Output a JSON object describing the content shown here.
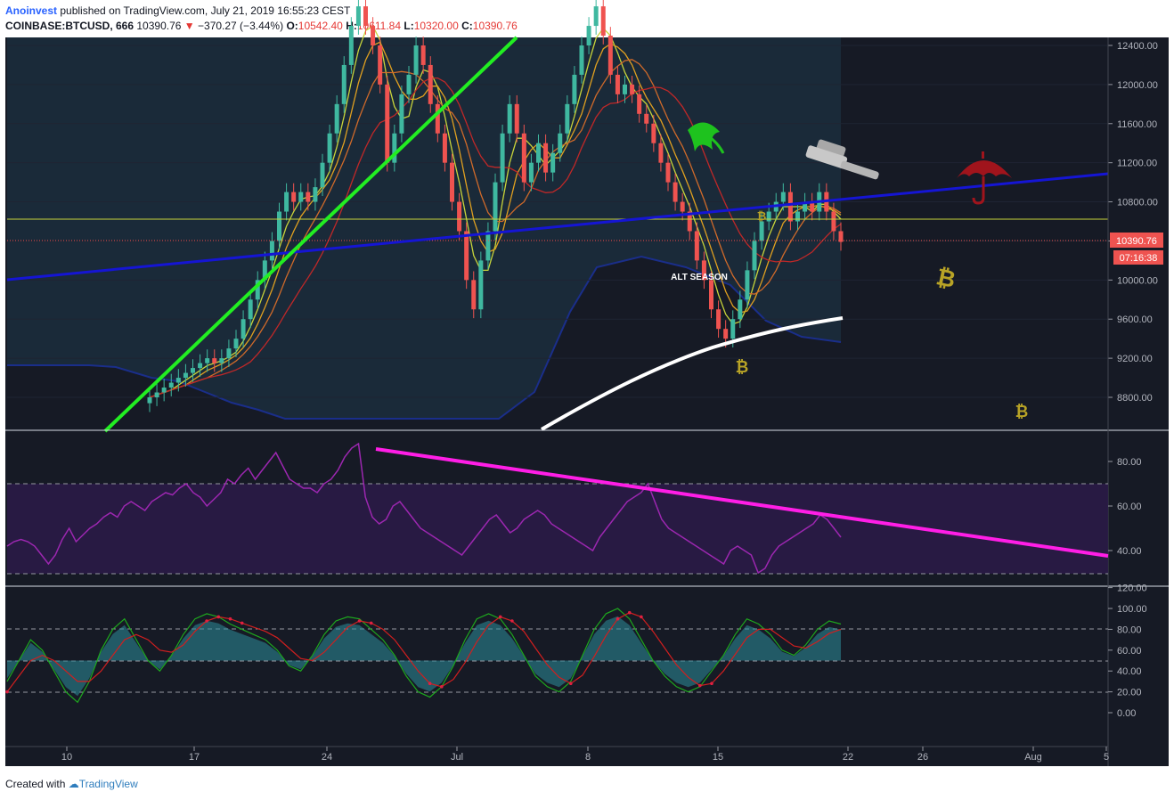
{
  "header": {
    "author": "Anoinvest",
    "published": "published on TradingView.com, July 21, 2019 16:55:23 CEST",
    "symbol": "COINBASE:BTCUSD, 666",
    "last": "10390.76",
    "change": "−370.27 (−3.44%)",
    "o_label": "O:",
    "o": "10542.40",
    "h_label": "H:",
    "h": "10611.84",
    "l_label": "L:",
    "l": "10320.00",
    "c_label": "C:",
    "c": "10390.76"
  },
  "footer": {
    "created": "Created with",
    "brand": "TradingView"
  },
  "colors": {
    "background": "#161a25",
    "up": "#26a69a",
    "down": "#ef5350",
    "trend_green": "#22ee22",
    "trend_blue": "#1515d4",
    "ma_white": "#ffffff",
    "rsi_line": "#9c27b0",
    "rsi_trend": "#ff1ee6",
    "price_tag": "#ef5350"
  },
  "chart_data": [
    {
      "type": "candlestick",
      "panel": "price",
      "y_ticks": [
        "12400.00",
        "12000.00",
        "11600.00",
        "11200.00",
        "10800.00",
        "10400.00",
        "10000.00",
        "9600.00",
        "9200.00",
        "8800.00"
      ],
      "ylim": [
        8500,
        12700
      ],
      "x_ticks": [
        "10",
        "17",
        "24",
        "Jul",
        "8",
        "15",
        "22",
        "26",
        "Aug",
        "5"
      ],
      "last_price_label": "10390.76",
      "countdown_label": "07:16:38",
      "horizontal_level": 10600,
      "annotation": "ALT SEASON",
      "icons": [
        "bitcoin-icon",
        "bitcoin-icon",
        "bitcoin-icon",
        "bitcoin-icon",
        "hammer-icon",
        "umbrella-icon",
        "bull-horn-icon"
      ],
      "close_series": [
        8800,
        8850,
        8900,
        8950,
        9000,
        9050,
        9100,
        9150,
        9200,
        9150,
        9200,
        9300,
        9400,
        9600,
        9800,
        10000,
        10200,
        10400,
        10700,
        10900,
        10800,
        10900,
        10800,
        10950,
        11200,
        11500,
        11800,
        12200,
        12600,
        12800,
        12600,
        12400,
        12000,
        11200,
        11500,
        11900,
        12100,
        12400,
        12200,
        11800,
        11500,
        11200,
        10800,
        10500,
        10000,
        9700,
        10200,
        10500,
        11000,
        11500,
        11800,
        11500,
        11000,
        11200,
        11400,
        11100,
        11300,
        11500,
        11800,
        12100,
        12400,
        12600,
        12800,
        12500,
        12100,
        11900,
        12000,
        11900,
        11700,
        11600,
        11400,
        11200,
        11000,
        10800,
        10700,
        10500,
        10200,
        10000,
        9700,
        9500,
        9400,
        9600,
        9800,
        10100,
        10400,
        10600,
        10700,
        10800,
        10900,
        10600,
        10700,
        10800,
        10700,
        10900,
        10700,
        10500,
        10390
      ]
    },
    {
      "type": "line",
      "panel": "rsi",
      "y_ticks": [
        "80.00",
        "60.00",
        "40.00"
      ],
      "ylim": [
        25,
        95
      ],
      "bands": [
        30,
        70
      ],
      "values": [
        42,
        44,
        45,
        44,
        42,
        38,
        34,
        38,
        45,
        50,
        44,
        47,
        50,
        52,
        55,
        57,
        55,
        60,
        62,
        60,
        58,
        62,
        64,
        66,
        65,
        68,
        70,
        66,
        64,
        60,
        63,
        66,
        72,
        70,
        74,
        77,
        72,
        76,
        80,
        84,
        78,
        72,
        70,
        68,
        68,
        66,
        70,
        72,
        76,
        82,
        86,
        88,
        64,
        55,
        52,
        54,
        60,
        62,
        58,
        54,
        50,
        48,
        46,
        44,
        42,
        40,
        38,
        42,
        46,
        50,
        54,
        56,
        52,
        48,
        50,
        54,
        56,
        58,
        56,
        52,
        50,
        48,
        46,
        44,
        42,
        40,
        46,
        50,
        54,
        58,
        62,
        64,
        66,
        70,
        62,
        54,
        50,
        48,
        46,
        44,
        42,
        40,
        38,
        36,
        34,
        40,
        42,
        40,
        38,
        30,
        32,
        38,
        42,
        44,
        46,
        48,
        50,
        52,
        56,
        54,
        50,
        46
      ]
    },
    {
      "type": "line",
      "panel": "stochastic",
      "y_ticks": [
        "120.00",
        "100.00",
        "80.00",
        "60.00",
        "40.00",
        "20.00",
        "0.00"
      ],
      "ylim": [
        -15,
        125
      ],
      "bands": [
        20,
        50,
        80
      ],
      "series": [
        {
          "name": "",
          "values": [
            30,
            50,
            70,
            60,
            40,
            20,
            10,
            30,
            60,
            80,
            90,
            70,
            50,
            40,
            55,
            75,
            90,
            95,
            92,
            85,
            80,
            75,
            70,
            60,
            45,
            40,
            55,
            75,
            88,
            92,
            90,
            80,
            70,
            55,
            35,
            20,
            15,
            25,
            45,
            70,
            90,
            95,
            90,
            75,
            55,
            35,
            25,
            20,
            30,
            55,
            80,
            95,
            100,
            90,
            70,
            50,
            35,
            25,
            20,
            25,
            40,
            55,
            75,
            90,
            85,
            75,
            60,
            55,
            65,
            80,
            88,
            85
          ]
        },
        {
          "name": "",
          "values": [
            20,
            35,
            50,
            55,
            50,
            40,
            30,
            30,
            40,
            55,
            70,
            75,
            70,
            60,
            58,
            65,
            78,
            88,
            92,
            90,
            86,
            82,
            78,
            72,
            62,
            52,
            50,
            58,
            70,
            82,
            88,
            86,
            80,
            70,
            55,
            40,
            28,
            25,
            32,
            48,
            68,
            84,
            92,
            88,
            78,
            62,
            46,
            34,
            28,
            36,
            54,
            74,
            90,
            96,
            92,
            78,
            62,
            46,
            34,
            26,
            28,
            40,
            56,
            72,
            80,
            80,
            72,
            64,
            62,
            68,
            76,
            80
          ]
        }
      ]
    }
  ]
}
